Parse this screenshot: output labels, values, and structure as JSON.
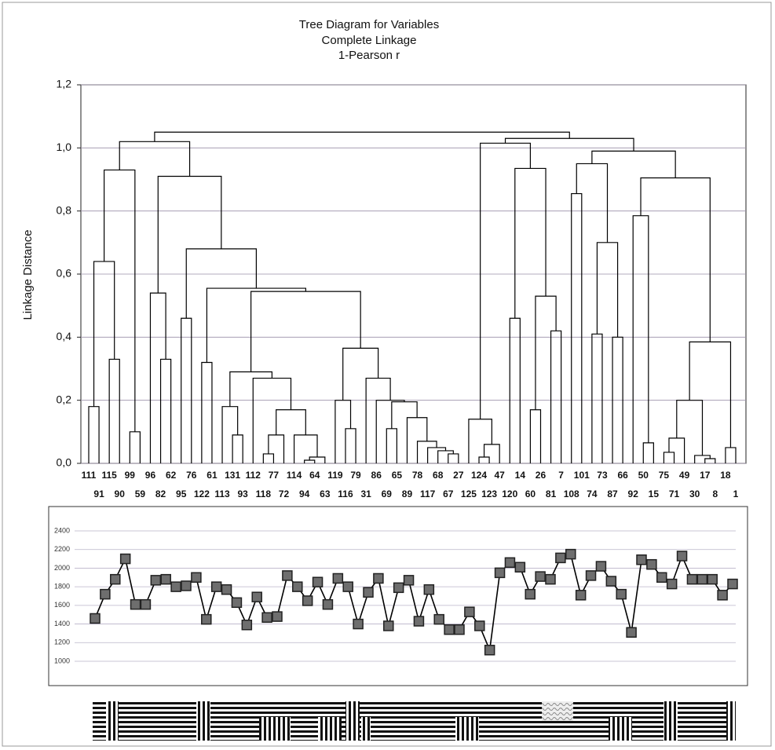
{
  "chart_data": [
    {
      "type": "dendrogram",
      "title": "Tree Diagram for  Variables",
      "subtitle": [
        "Complete Linkage",
        "1-Pearson r"
      ],
      "y_label": "Linkage Distance",
      "ylim": [
        0,
        1.2
      ],
      "yticks": [
        {
          "value": 0,
          "label": "0,0"
        },
        {
          "value": 0.2,
          "label": "0,2"
        },
        {
          "value": 0.4,
          "label": "0,4"
        },
        {
          "value": 0.6,
          "label": "0,6"
        },
        {
          "value": 0.8,
          "label": "0,8"
        },
        {
          "value": 1,
          "label": "1,0"
        },
        {
          "value": 1.2,
          "label": "1,2"
        }
      ],
      "grid": true,
      "color": "#000000",
      "tree": {
        "height": 1.05,
        "children": [
          {
            "height": 1.02,
            "children": [
              {
                "height": 0.93,
                "children": [
                  {
                    "height": 0.64,
                    "children": [
                      {
                        "height": 0.18,
                        "children": [
                          "111",
                          "91"
                        ]
                      },
                      {
                        "height": 0.33,
                        "children": [
                          "115",
                          "90"
                        ]
                      }
                    ]
                  },
                  {
                    "height": 0.1,
                    "children": [
                      "99",
                      "59"
                    ]
                  }
                ]
              },
              {
                "height": 0.91,
                "children": [
                  {
                    "height": 0.54,
                    "children": [
                      "96",
                      {
                        "height": 0.33,
                        "children": [
                          "82",
                          "62"
                        ]
                      }
                    ]
                  },
                  {
                    "height": 0.68,
                    "children": [
                      {
                        "height": 0.46,
                        "children": [
                          "95",
                          "76"
                        ]
                      },
                      {
                        "height": 0.555,
                        "children": [
                          {
                            "height": 0.32,
                            "children": [
                              "122",
                              "61"
                            ]
                          },
                          {
                            "height": 0.545,
                            "children": [
                              {
                                "height": 0.29,
                                "children": [
                                  {
                                    "height": 0.18,
                                    "children": [
                                      "113",
                                      {
                                        "height": 0.09,
                                        "children": [
                                          "131",
                                          "93"
                                        ]
                                      }
                                    ]
                                  },
                                  {
                                    "height": 0.27,
                                    "children": [
                                      "112",
                                      {
                                        "height": 0.17,
                                        "children": [
                                          {
                                            "height": 0.09,
                                            "children": [
                                              {
                                                "height": 0.03,
                                                "children": [
                                                  "118",
                                                  "77"
                                                ]
                                              },
                                              "72"
                                            ]
                                          },
                                          {
                                            "height": 0.09,
                                            "children": [
                                              "114",
                                              {
                                                "height": 0.02,
                                                "children": [
                                                  {
                                                    "height": 0.01,
                                                    "children": [
                                                      "94",
                                                      "64"
                                                    ]
                                                  },
                                                  "63"
                                                ]
                                              }
                                            ]
                                          }
                                        ]
                                      }
                                    ]
                                  }
                                ]
                              },
                              {
                                "height": 0.365,
                                "children": [
                                  {
                                    "height": 0.2,
                                    "children": [
                                      "119",
                                      {
                                        "height": 0.11,
                                        "children": [
                                          "116",
                                          "79"
                                        ]
                                      }
                                    ]
                                  },
                                  {
                                    "height": 0.27,
                                    "children": [
                                      "31",
                                      {
                                        "height": 0.2,
                                        "children": [
                                          "86",
                                          {
                                            "height": 0.195,
                                            "children": [
                                              {
                                                "height": 0.11,
                                                "children": [
                                                  "69",
                                                  "65"
                                                ]
                                              },
                                              {
                                                "height": 0.145,
                                                "children": [
                                                  "89",
                                                  {
                                                    "height": 0.07,
                                                    "children": [
                                                      "78",
                                                      {
                                                        "height": 0.05,
                                                        "children": [
                                                          "117",
                                                          {
                                                            "height": 0.04,
                                                            "children": [
                                                              "68",
                                                              {
                                                                "height": 0.03,
                                                                "children": [
                                                                  "67",
                                                                  "27"
                                                                ]
                                                              }
                                                            ]
                                                          }
                                                        ]
                                                      }
                                                    ]
                                                  }
                                                ]
                                              }
                                            ]
                                          }
                                        ]
                                      }
                                    ]
                                  }
                                ]
                              }
                            ]
                          }
                        ]
                      }
                    ]
                  }
                ]
              }
            ]
          },
          {
            "height": 1.03,
            "children": [
              {
                "height": 1.015,
                "children": [
                  {
                    "height": 0.14,
                    "children": [
                      "125",
                      {
                        "height": 0.06,
                        "children": [
                          {
                            "height": 0.02,
                            "children": [
                              "124",
                              "123"
                            ]
                          },
                          "47"
                        ]
                      }
                    ]
                  },
                  {
                    "height": 0.935,
                    "children": [
                      {
                        "height": 0.46,
                        "children": [
                          "120",
                          "14"
                        ]
                      },
                      {
                        "height": 0.53,
                        "children": [
                          {
                            "height": 0.17,
                            "children": [
                              "60",
                              "26"
                            ]
                          },
                          {
                            "height": 0.42,
                            "children": [
                              "81",
                              "7"
                            ]
                          }
                        ]
                      }
                    ]
                  }
                ]
              },
              {
                "height": 0.99,
                "children": [
                  {
                    "height": 0.95,
                    "children": [
                      {
                        "height": 0.855,
                        "children": [
                          "108",
                          "101"
                        ]
                      },
                      {
                        "height": 0.7,
                        "children": [
                          {
                            "height": 0.41,
                            "children": [
                              "74",
                              "73"
                            ]
                          },
                          {
                            "height": 0.4,
                            "children": [
                              "87",
                              "66"
                            ]
                          }
                        ]
                      }
                    ]
                  },
                  {
                    "height": 0.905,
                    "children": [
                      {
                        "height": 0.785,
                        "children": [
                          "92",
                          {
                            "height": 0.065,
                            "children": [
                              "50",
                              "15"
                            ]
                          }
                        ]
                      },
                      {
                        "height": 0.385,
                        "children": [
                          {
                            "height": 0.2,
                            "children": [
                              {
                                "height": 0.08,
                                "children": [
                                  {
                                    "height": 0.035,
                                    "children": [
                                      "75",
                                      "71"
                                    ]
                                  },
                                  "49"
                                ]
                              },
                              {
                                "height": 0.025,
                                "children": [
                                  "30",
                                  {
                                    "height": 0.015,
                                    "children": [
                                      "17",
                                      "8"
                                    ]
                                  }
                                ]
                              }
                            ]
                          },
                          {
                            "height": 0.05,
                            "children": [
                              "18",
                              "1"
                            ]
                          }
                        ]
                      }
                    ]
                  }
                ]
              }
            ]
          }
        ]
      }
    },
    {
      "type": "line",
      "values": [
        1460,
        1720,
        1880,
        2100,
        1610,
        1610,
        1870,
        1880,
        1800,
        1810,
        1900,
        1450,
        1800,
        1770,
        1630,
        1390,
        1690,
        1470,
        1480,
        1920,
        1800,
        1650,
        1850,
        1610,
        1890,
        1800,
        1400,
        1740,
        1890,
        1380,
        1790,
        1870,
        1430,
        1770,
        1450,
        1340,
        1340,
        1530,
        1380,
        1120,
        1950,
        2060,
        2010,
        1720,
        1910,
        1880,
        2110,
        2150,
        1710,
        1920,
        2020,
        1860,
        1720,
        1310,
        2090,
        2040,
        1900,
        1830,
        2130,
        1880,
        1880,
        1880,
        1710,
        1830
      ],
      "ylim": [
        1000,
        2400
      ],
      "yticks": [
        1000,
        1200,
        1400,
        1600,
        1800,
        2000,
        2200,
        2400
      ],
      "grid": true,
      "color": "#000000",
      "marker_color": "#6e6e6e"
    }
  ]
}
